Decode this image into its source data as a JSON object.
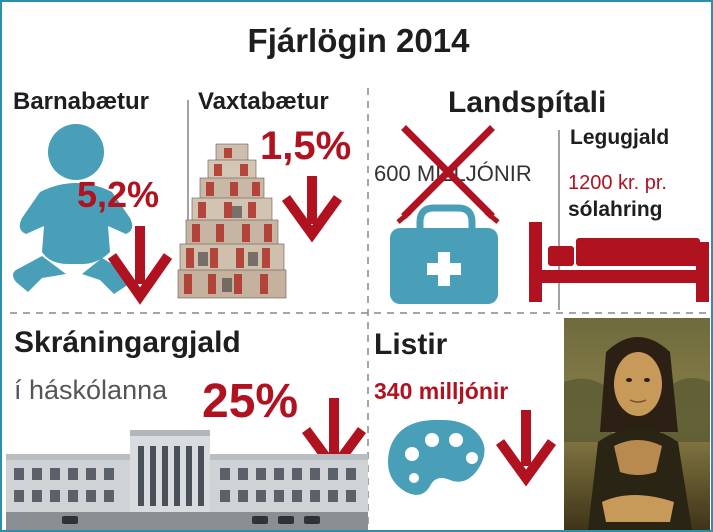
{
  "title": "Fjárlögin 2014",
  "colors": {
    "accent_red": "#b0121f",
    "teal": "#4a9fb8",
    "text": "#1e1e1e",
    "frame": "#2c8fb0"
  },
  "sections": {
    "barnabaetur": {
      "label": "Barnabætur",
      "value": "5,2%",
      "icon": "baby-icon",
      "trend": "down-arrow-icon"
    },
    "vaxtabaetur": {
      "label": "Vaxtabætur",
      "value": "1,5%",
      "image": "money-stack-image",
      "trend": "down-arrow-icon"
    },
    "landspitali": {
      "label": "Landspítali",
      "amount": "600 MILLJÓNIR",
      "icons": [
        "cross-out-icon",
        "medical-bag-icon",
        "bed-icon"
      ],
      "legugjald": {
        "label": "Legugjald",
        "price": "1200 kr. pr.",
        "unit": "sólahring"
      }
    },
    "skraningargjald": {
      "label": "Skráningargjald",
      "sublabel": "í háskólanna",
      "value": "25%",
      "image": "university-building-image",
      "trend": "down-arrow-icon"
    },
    "listir": {
      "label": "Listir",
      "amount": "340 milljónir",
      "icons": [
        "palette-icon",
        "mona-lisa-image"
      ],
      "trend": "down-arrow-icon"
    }
  }
}
